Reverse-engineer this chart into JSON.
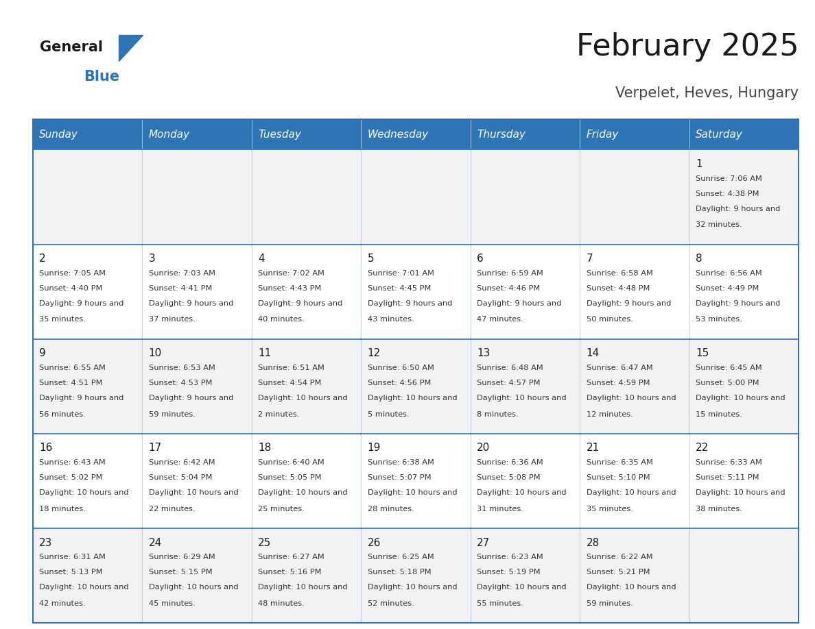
{
  "title": "February 2025",
  "subtitle": "Verpelet, Heves, Hungary",
  "header_bg": "#2E75B6",
  "header_text_color": "#FFFFFF",
  "cell_bg_light": "#F2F2F2",
  "cell_bg_white": "#FFFFFF",
  "text_color": "#333333",
  "line_color": "#2E75B6",
  "days_of_week": [
    "Sunday",
    "Monday",
    "Tuesday",
    "Wednesday",
    "Thursday",
    "Friday",
    "Saturday"
  ],
  "calendar_data": [
    [
      null,
      null,
      null,
      null,
      null,
      null,
      {
        "day": 1,
        "sunrise": "7:06 AM",
        "sunset": "4:38 PM",
        "daylight": "9 hours and 32 minutes."
      }
    ],
    [
      {
        "day": 2,
        "sunrise": "7:05 AM",
        "sunset": "4:40 PM",
        "daylight": "9 hours and 35 minutes."
      },
      {
        "day": 3,
        "sunrise": "7:03 AM",
        "sunset": "4:41 PM",
        "daylight": "9 hours and 37 minutes."
      },
      {
        "day": 4,
        "sunrise": "7:02 AM",
        "sunset": "4:43 PM",
        "daylight": "9 hours and 40 minutes."
      },
      {
        "day": 5,
        "sunrise": "7:01 AM",
        "sunset": "4:45 PM",
        "daylight": "9 hours and 43 minutes."
      },
      {
        "day": 6,
        "sunrise": "6:59 AM",
        "sunset": "4:46 PM",
        "daylight": "9 hours and 47 minutes."
      },
      {
        "day": 7,
        "sunrise": "6:58 AM",
        "sunset": "4:48 PM",
        "daylight": "9 hours and 50 minutes."
      },
      {
        "day": 8,
        "sunrise": "6:56 AM",
        "sunset": "4:49 PM",
        "daylight": "9 hours and 53 minutes."
      }
    ],
    [
      {
        "day": 9,
        "sunrise": "6:55 AM",
        "sunset": "4:51 PM",
        "daylight": "9 hours and 56 minutes."
      },
      {
        "day": 10,
        "sunrise": "6:53 AM",
        "sunset": "4:53 PM",
        "daylight": "9 hours and 59 minutes."
      },
      {
        "day": 11,
        "sunrise": "6:51 AM",
        "sunset": "4:54 PM",
        "daylight": "10 hours and 2 minutes."
      },
      {
        "day": 12,
        "sunrise": "6:50 AM",
        "sunset": "4:56 PM",
        "daylight": "10 hours and 5 minutes."
      },
      {
        "day": 13,
        "sunrise": "6:48 AM",
        "sunset": "4:57 PM",
        "daylight": "10 hours and 8 minutes."
      },
      {
        "day": 14,
        "sunrise": "6:47 AM",
        "sunset": "4:59 PM",
        "daylight": "10 hours and 12 minutes."
      },
      {
        "day": 15,
        "sunrise": "6:45 AM",
        "sunset": "5:00 PM",
        "daylight": "10 hours and 15 minutes."
      }
    ],
    [
      {
        "day": 16,
        "sunrise": "6:43 AM",
        "sunset": "5:02 PM",
        "daylight": "10 hours and 18 minutes."
      },
      {
        "day": 17,
        "sunrise": "6:42 AM",
        "sunset": "5:04 PM",
        "daylight": "10 hours and 22 minutes."
      },
      {
        "day": 18,
        "sunrise": "6:40 AM",
        "sunset": "5:05 PM",
        "daylight": "10 hours and 25 minutes."
      },
      {
        "day": 19,
        "sunrise": "6:38 AM",
        "sunset": "5:07 PM",
        "daylight": "10 hours and 28 minutes."
      },
      {
        "day": 20,
        "sunrise": "6:36 AM",
        "sunset": "5:08 PM",
        "daylight": "10 hours and 31 minutes."
      },
      {
        "day": 21,
        "sunrise": "6:35 AM",
        "sunset": "5:10 PM",
        "daylight": "10 hours and 35 minutes."
      },
      {
        "day": 22,
        "sunrise": "6:33 AM",
        "sunset": "5:11 PM",
        "daylight": "10 hours and 38 minutes."
      }
    ],
    [
      {
        "day": 23,
        "sunrise": "6:31 AM",
        "sunset": "5:13 PM",
        "daylight": "10 hours and 42 minutes."
      },
      {
        "day": 24,
        "sunrise": "6:29 AM",
        "sunset": "5:15 PM",
        "daylight": "10 hours and 45 minutes."
      },
      {
        "day": 25,
        "sunrise": "6:27 AM",
        "sunset": "5:16 PM",
        "daylight": "10 hours and 48 minutes."
      },
      {
        "day": 26,
        "sunrise": "6:25 AM",
        "sunset": "5:18 PM",
        "daylight": "10 hours and 52 minutes."
      },
      {
        "day": 27,
        "sunrise": "6:23 AM",
        "sunset": "5:19 PM",
        "daylight": "10 hours and 55 minutes."
      },
      {
        "day": 28,
        "sunrise": "6:22 AM",
        "sunset": "5:21 PM",
        "daylight": "10 hours and 59 minutes."
      },
      null
    ]
  ]
}
